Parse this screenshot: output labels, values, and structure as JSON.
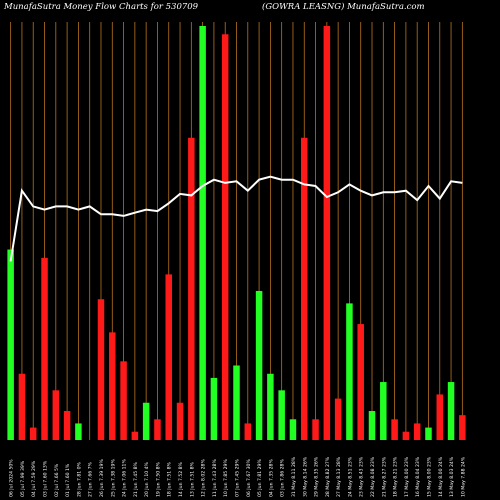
{
  "header": {
    "left_text": "MunafaSutra  Money Flow  Charts for 530709",
    "right_text": "(GOWRA LEASNG) MunafaSutra.com"
  },
  "colors": {
    "background": "#000000",
    "grid": "#b8731f",
    "up": "#22ff22",
    "down": "#ff1a1a",
    "line": "#ffffff",
    "label": "#ffffff"
  },
  "chart_data": {
    "type": "bar",
    "bar_scale": [
      0,
      100
    ],
    "line_scale": [
      0,
      100
    ],
    "bars": [
      {
        "label": "06 Jul 2024 50%",
        "value": 46,
        "dir": "up"
      },
      {
        "label": "05 Jul 7.99 39%",
        "value": 16,
        "dir": "down"
      },
      {
        "label": "04 Jul 7.59 29%",
        "value": 3,
        "dir": "down"
      },
      {
        "label": "03 Jul 7.60 13%",
        "value": 44,
        "dir": "down"
      },
      {
        "label": "02 Jul 7.66 5%",
        "value": 12,
        "dir": "down"
      },
      {
        "label": "01 Jul 7.60 1%",
        "value": 7,
        "dir": "down"
      },
      {
        "label": "28 Jun 7.81 0%",
        "value": 4,
        "dir": "up"
      },
      {
        "label": "27 Jun 7.66 7%",
        "value": 0,
        "dir": "up"
      },
      {
        "label": "26 Jun 7.39 19%",
        "value": 34,
        "dir": "down"
      },
      {
        "label": "25 Jun 7.38 19%",
        "value": 26,
        "dir": "down"
      },
      {
        "label": "24 Jun 7.06 11%",
        "value": 19,
        "dir": "down"
      },
      {
        "label": "21 Jun 7.45 8%",
        "value": 2,
        "dir": "down"
      },
      {
        "label": "20 Jun 7.10 4%",
        "value": 9,
        "dir": "up"
      },
      {
        "label": "19 Jun 7.50 8%",
        "value": 5,
        "dir": "down"
      },
      {
        "label": "18 Jun 7.51 8%",
        "value": 40,
        "dir": "down"
      },
      {
        "label": "14 Jun 7.52 8%",
        "value": 9,
        "dir": "down"
      },
      {
        "label": "13 Jun 7.51 8%",
        "value": 73,
        "dir": "down"
      },
      {
        "label": "12 Jun 8.02 28%",
        "value": 100,
        "dir": "up"
      },
      {
        "label": "11 Jun 7.43 28%",
        "value": 15,
        "dir": "up"
      },
      {
        "label": "10 Jun 7.85 29%",
        "value": 98,
        "dir": "down"
      },
      {
        "label": "07 Jun 7.45 29%",
        "value": 18,
        "dir": "up"
      },
      {
        "label": "06 Jun 7.67 30%",
        "value": 4,
        "dir": "down"
      },
      {
        "label": "05 Jun 7.81 29%",
        "value": 36,
        "dir": "up"
      },
      {
        "label": "04 Jun 7.35 28%",
        "value": 16,
        "dir": "up"
      },
      {
        "label": "03 Jun 7.86 28%",
        "value": 12,
        "dir": "up"
      },
      {
        "label": "31 May 8.11 28%",
        "value": 5,
        "dir": "up"
      },
      {
        "label": "30 May 8.14 26%",
        "value": 73,
        "dir": "down"
      },
      {
        "label": "29 May 8.35 26%",
        "value": 5,
        "dir": "down"
      },
      {
        "label": "28 May 8.82 27%",
        "value": 100,
        "dir": "down"
      },
      {
        "label": "27 May 8.13 28%",
        "value": 10,
        "dir": "down"
      },
      {
        "label": "24 May 8.51 23%",
        "value": 33,
        "dir": "up"
      },
      {
        "label": "23 May 8.43 23%",
        "value": 28,
        "dir": "down"
      },
      {
        "label": "22 May 8.08 23%",
        "value": 7,
        "dir": "up"
      },
      {
        "label": "21 May 8.27 23%",
        "value": 14,
        "dir": "up"
      },
      {
        "label": "18 May 8.21 23%",
        "value": 5,
        "dir": "down"
      },
      {
        "label": "17 May 8.00 23%",
        "value": 2,
        "dir": "down"
      },
      {
        "label": "16 May 8.04 23%",
        "value": 4,
        "dir": "down"
      },
      {
        "label": "15 May 8.00 23%",
        "value": 3,
        "dir": "up"
      },
      {
        "label": "14 May 8.00 24%",
        "value": 11,
        "dir": "down"
      },
      {
        "label": "13 May 8.03 24%",
        "value": 14,
        "dir": "up"
      },
      {
        "label": "10 May 7.88 24%",
        "value": 6,
        "dir": "down"
      }
    ],
    "line_values": [
      15,
      60,
      50,
      48,
      50,
      50,
      48,
      50,
      45,
      45,
      44,
      46,
      48,
      47,
      52,
      58,
      57,
      63,
      67,
      65,
      66,
      60,
      67,
      69,
      67,
      67,
      64,
      63,
      56,
      59,
      64,
      60,
      57,
      59,
      59,
      60,
      54,
      63,
      55,
      66,
      65
    ]
  }
}
